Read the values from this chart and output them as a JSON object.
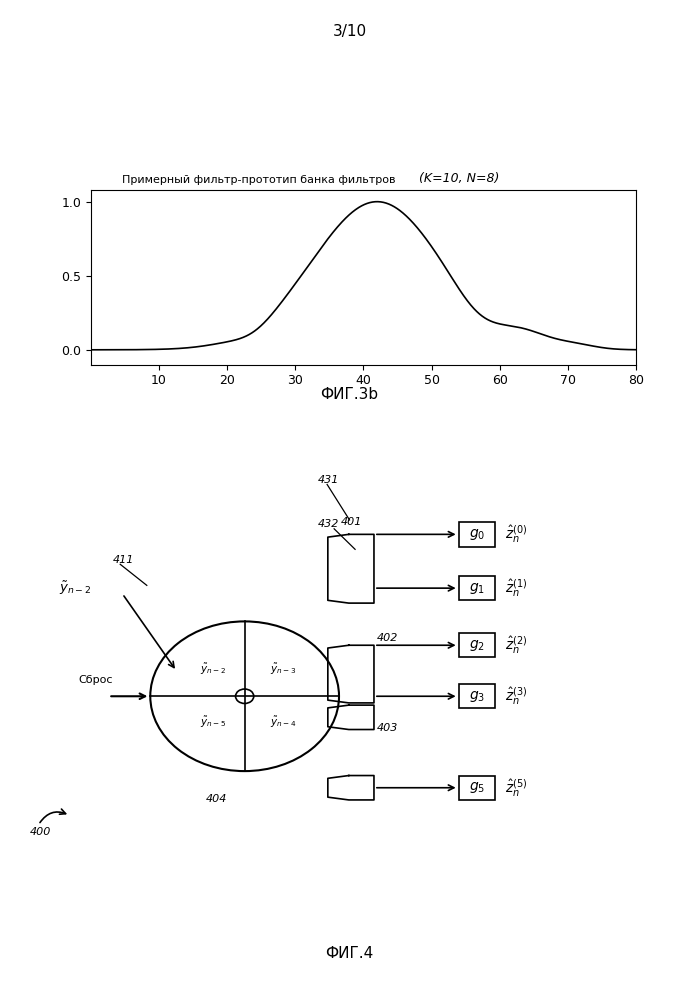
{
  "page_label": "3/10",
  "fig3b_title1": "Примерный фильтр-прототип банка фильтров",
  "fig3b_title2": "(K=10, N=8)",
  "fig3b_xlabel_ticks": [
    10,
    20,
    30,
    40,
    50,
    60,
    70,
    80
  ],
  "fig3b_ylabel_ticks": [
    0,
    0.5,
    1
  ],
  "fig3b_caption": "ФИГ.3b",
  "fig4_caption": "ФИГ.4",
  "fig4_label_400": "400",
  "fig4_label_401": "401",
  "fig4_label_402": "402",
  "fig4_label_403": "403",
  "fig4_label_404": "404",
  "fig4_label_411": "411",
  "fig4_label_431": "431",
  "fig4_label_432": "432",
  "fig4_label_reset": "Сброс"
}
